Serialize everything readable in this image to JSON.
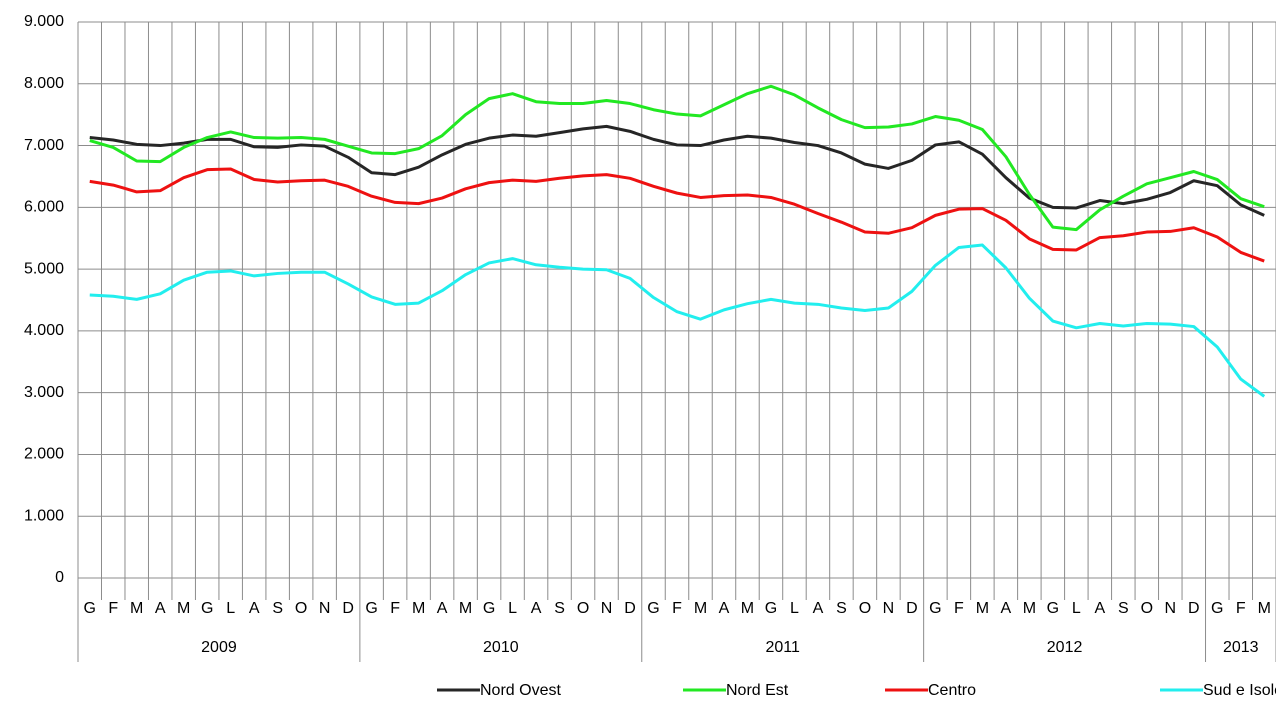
{
  "chart_data": {
    "type": "line",
    "categories": [
      "G",
      "F",
      "M",
      "A",
      "M",
      "G",
      "L",
      "A",
      "S",
      "O",
      "N",
      "D",
      "G",
      "F",
      "M",
      "A",
      "M",
      "G",
      "L",
      "A",
      "S",
      "O",
      "N",
      "D",
      "G",
      "F",
      "M",
      "A",
      "M",
      "G",
      "L",
      "A",
      "S",
      "O",
      "N",
      "D",
      "G",
      "F",
      "M",
      "A",
      "M",
      "G",
      "L",
      "A",
      "S",
      "O",
      "N",
      "D",
      "G",
      "F",
      "M"
    ],
    "groups": [
      {
        "label": "2009",
        "size": 12
      },
      {
        "label": "2010",
        "size": 12
      },
      {
        "label": "2011",
        "size": 12
      },
      {
        "label": "2012",
        "size": 12
      },
      {
        "label": "2013",
        "size": 3
      }
    ],
    "series": [
      {
        "name": "Nord Ovest",
        "color": "#262626",
        "values": [
          7130,
          7090,
          7020,
          7000,
          7040,
          7100,
          7100,
          6980,
          6970,
          7010,
          6990,
          6810,
          6560,
          6530,
          6650,
          6850,
          7020,
          7120,
          7170,
          7150,
          7210,
          7270,
          7310,
          7230,
          7100,
          7010,
          7000,
          7090,
          7150,
          7120,
          7050,
          7000,
          6880,
          6700,
          6630,
          6760,
          7010,
          7060,
          6860,
          6480,
          6150,
          6000,
          5990,
          6110,
          6060,
          6130,
          6240,
          6430,
          6350,
          6040,
          5870
        ]
      },
      {
        "name": "Nord Est",
        "color": "#22e822",
        "values": [
          7080,
          6970,
          6750,
          6740,
          6970,
          7130,
          7220,
          7130,
          7120,
          7130,
          7100,
          6990,
          6880,
          6870,
          6950,
          7160,
          7500,
          7760,
          7840,
          7710,
          7680,
          7680,
          7730,
          7680,
          7580,
          7510,
          7480,
          7660,
          7840,
          7960,
          7820,
          7610,
          7420,
          7290,
          7300,
          7350,
          7470,
          7410,
          7260,
          6820,
          6210,
          5680,
          5640,
          5960,
          6180,
          6380,
          6480,
          6580,
          6450,
          6140,
          6010
        ]
      },
      {
        "name": "Centro",
        "color": "#ee1111",
        "values": [
          6420,
          6360,
          6250,
          6270,
          6480,
          6610,
          6620,
          6450,
          6410,
          6430,
          6440,
          6340,
          6180,
          6080,
          6060,
          6150,
          6300,
          6400,
          6440,
          6420,
          6470,
          6510,
          6530,
          6470,
          6340,
          6230,
          6160,
          6190,
          6200,
          6160,
          6050,
          5900,
          5760,
          5600,
          5580,
          5670,
          5870,
          5970,
          5980,
          5790,
          5490,
          5320,
          5310,
          5510,
          5540,
          5600,
          5610,
          5670,
          5520,
          5270,
          5130
        ]
      },
      {
        "name": "Sud e Isole",
        "color": "#22eeee",
        "values": [
          4580,
          4560,
          4510,
          4600,
          4820,
          4950,
          4970,
          4890,
          4930,
          4950,
          4950,
          4760,
          4550,
          4430,
          4450,
          4650,
          4910,
          5100,
          5170,
          5070,
          5030,
          5000,
          4990,
          4850,
          4540,
          4310,
          4190,
          4340,
          4440,
          4510,
          4450,
          4430,
          4370,
          4330,
          4370,
          4640,
          5060,
          5350,
          5390,
          5020,
          4530,
          4160,
          4050,
          4120,
          4080,
          4120,
          4110,
          4070,
          3740,
          3220,
          2940
        ]
      }
    ],
    "ylim": [
      0,
      9000
    ],
    "yticks": [
      0,
      {
        "value": 1000,
        "label": "1.000"
      },
      {
        "value": 2000,
        "label": "2.000"
      },
      {
        "value": 3000,
        "label": "3.000"
      },
      {
        "value": 4000,
        "label": "4.000"
      },
      {
        "value": 5000,
        "label": "5.000"
      },
      {
        "value": 6000,
        "label": "6.000"
      },
      {
        "value": 7000,
        "label": "7.000"
      },
      {
        "value": 8000,
        "label": "8.000"
      },
      {
        "value": 9000,
        "label": "9.000"
      }
    ],
    "grid": true,
    "legend": "bottom"
  }
}
